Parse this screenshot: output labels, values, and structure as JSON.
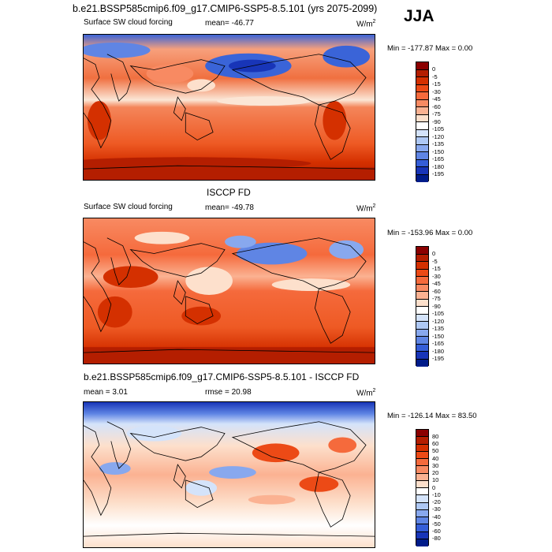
{
  "title": "b.e21.BSSP585cmip6.f09_g17.CMIP6-SSP5-8.5.101 (yrs 2075-2099)",
  "season": "JJA",
  "panels": [
    {
      "title_left": "Surface SW cloud forcing",
      "mean_text": "mean= -46.77",
      "units": "W/m",
      "units_sup": "2",
      "min_max": "Min = -177.87 Max =   0.00"
    },
    {
      "center_title": "ISCCP FD",
      "title_left": "Surface SW cloud forcing",
      "mean_text": "mean= -49.78",
      "units": "W/m",
      "units_sup": "2",
      "min_max": "Min = -153.96 Max =   0.00"
    },
    {
      "center_title": "b.e21.BSSP585cmip6.f09_g17.CMIP6-SSP5-8.5.101 - ISCCP FD",
      "mean_text": "mean =   3.01",
      "rmse_text": "rmse =  20.98",
      "units": "W/m",
      "units_sup": "2",
      "min_max": "Min = -126.14 Max =  83.50"
    }
  ],
  "colorbar_main": {
    "labels": [
      "0",
      "-5",
      "-15",
      "-30",
      "-45",
      "-60",
      "-75",
      "-90",
      "-105",
      "-120",
      "-135",
      "-150",
      "-165",
      "-180",
      "-195"
    ],
    "colors": [
      "#8b0000",
      "#b41e00",
      "#d43000",
      "#ec4a16",
      "#f56a3c",
      "#f88a62",
      "#fbb292",
      "#fde0cc",
      "#ffffff",
      "#d4e3fa",
      "#aec8f4",
      "#88a8ee",
      "#5f85e4",
      "#355ed8",
      "#1835b8",
      "#001c8a"
    ]
  },
  "colorbar_diff": {
    "labels": [
      "80",
      "60",
      "50",
      "40",
      "30",
      "20",
      "10",
      "0",
      "-10",
      "-20",
      "-30",
      "-40",
      "-50",
      "-60",
      "-80"
    ],
    "colors": [
      "#8b0000",
      "#b41e00",
      "#d43000",
      "#ec4a16",
      "#f56a3c",
      "#f88a62",
      "#fbb292",
      "#fde0cc",
      "#ffffff",
      "#d4e3fa",
      "#aec8f4",
      "#88a8ee",
      "#5f85e4",
      "#355ed8",
      "#1835b8",
      "#001c8a"
    ]
  }
}
